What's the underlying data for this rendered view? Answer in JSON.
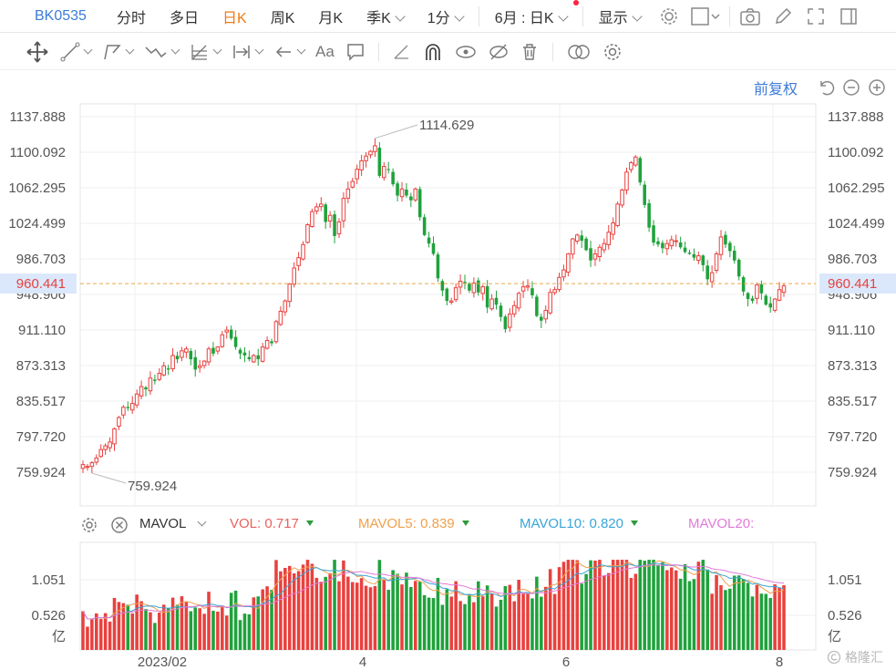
{
  "topbar": {
    "code": "BK0535",
    "tabs": [
      "分时",
      "多日",
      "日K",
      "周K",
      "月K",
      "季K",
      "1分",
      "6月 : 日K",
      "显示"
    ],
    "active_tab": "日K"
  },
  "drawbar": {
    "tools": [
      "move",
      "line",
      "polyline",
      "wave",
      "fib",
      "range",
      "arrow",
      "text",
      "note",
      "pen",
      "magnet",
      "visibility",
      "hide",
      "delete",
      "compare",
      "settings"
    ],
    "text_tool_label": "Aa"
  },
  "options": {
    "fq_label": "前复权"
  },
  "price_axis": {
    "labels": [
      "1137.888",
      "1100.092",
      "1062.295",
      "1024.499",
      "986.703",
      "948.906",
      "911.110",
      "873.313",
      "835.517",
      "797.720",
      "759.924"
    ],
    "current_label": "960.441"
  },
  "annotations": {
    "high": "1114.629",
    "low": "759.924"
  },
  "volume_legend": {
    "indicator": "MAVOL",
    "vol_label": "VOL:",
    "vol_value": "0.717",
    "mavol5_label": "MAVOL5:",
    "mavol5_value": "0.839",
    "mavol10_label": "MAVOL10:",
    "mavol10_value": "0.820",
    "mavol20_label": "MAVOL20:"
  },
  "volume_axis": {
    "labels": [
      "1.051",
      "0.526"
    ],
    "unit": "亿"
  },
  "x_axis": {
    "labels": [
      "2023/02",
      "4",
      "6",
      "8"
    ]
  },
  "watermark": "格隆汇",
  "colors": {
    "up": "#e8413e",
    "down": "#1fa23c",
    "accent": "#3b7bd8",
    "active_tab": "#f07a13",
    "current_line": "#e9a64a",
    "mavol5": "#f0a04b",
    "mavol10": "#3aa5d8",
    "mavol20": "#e27ad8"
  },
  "chart_data": {
    "type": "candlestick",
    "y_range": [
      745,
      1155
    ],
    "closes": [
      768,
      766,
      770,
      775,
      784,
      788,
      792,
      806,
      818,
      829,
      828,
      833,
      843,
      851,
      848,
      860,
      857,
      865,
      873,
      869,
      884,
      880,
      889,
      891,
      880,
      869,
      873,
      878,
      891,
      886,
      893,
      906,
      911,
      902,
      893,
      886,
      884,
      880,
      884,
      880,
      893,
      900,
      897,
      920,
      931,
      942,
      960,
      977,
      988,
      1002,
      1023,
      1037,
      1042,
      1045,
      1026,
      1033,
      1011,
      1026,
      1051,
      1061,
      1069,
      1082,
      1091,
      1096,
      1101,
      1107,
      1075,
      1085,
      1082,
      1066,
      1054,
      1061,
      1054,
      1049,
      1061,
      1031,
      1012,
      1003,
      992,
      966,
      953,
      942,
      942,
      956,
      963,
      961,
      953,
      961,
      951,
      957,
      935,
      944,
      938,
      925,
      912,
      928,
      937,
      950,
      957,
      958,
      948,
      926,
      921,
      932,
      951,
      954,
      967,
      975,
      992,
      1008,
      1012,
      1006,
      996,
      985,
      992,
      999,
      1003,
      1015,
      1025,
      1045,
      1060,
      1079,
      1089,
      1095,
      1068,
      1044,
      1020,
      1004,
      1002,
      998,
      1003,
      1007,
      1006,
      999,
      994,
      992,
      988,
      990,
      980,
      965,
      972,
      992,
      1010,
      1002,
      995,
      985,
      968,
      952,
      944,
      942,
      959,
      950,
      938,
      935,
      944,
      954,
      958
    ]
  }
}
